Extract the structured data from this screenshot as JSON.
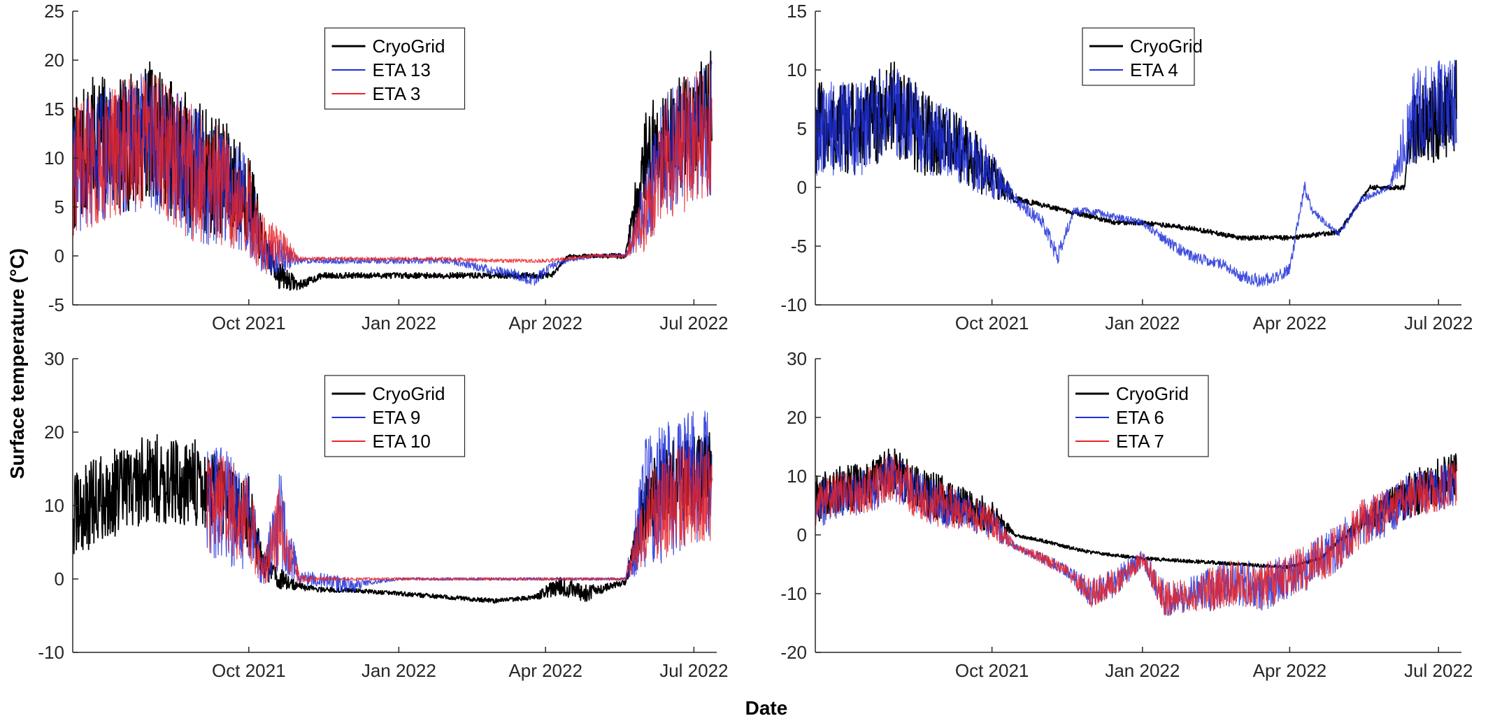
{
  "figure": {
    "ylabel": "Surface temperature (°C)",
    "xlabel": "Date"
  },
  "chart_data": [
    {
      "type": "line",
      "xlim": [
        "2021-06-15",
        "2022-07-15"
      ],
      "ylim": [
        -5,
        25
      ],
      "yticks": [
        -5,
        0,
        5,
        10,
        15,
        20,
        25
      ],
      "xticks": [
        {
          "date": "2021-10-01",
          "label": "Oct 2021"
        },
        {
          "date": "2022-01-01",
          "label": "Jan 2022"
        },
        {
          "date": "2022-04-01",
          "label": "Apr 2022"
        },
        {
          "date": "2022-07-01",
          "label": "Jul 2022"
        }
      ],
      "legend": "top-center",
      "series": [
        {
          "name": "CryoGrid",
          "color": "#000000",
          "x": [
            "2021-06-15",
            "2021-07-01",
            "2021-07-15",
            "2021-08-01",
            "2021-08-15",
            "2021-09-01",
            "2021-09-15",
            "2021-10-01",
            "2021-10-10",
            "2021-10-20",
            "2021-11-01",
            "2021-11-15",
            "2021-12-01",
            "2022-01-01",
            "2022-02-01",
            "2022-03-01",
            "2022-03-25",
            "2022-04-05",
            "2022-04-15",
            "2022-05-01",
            "2022-05-20",
            "2022-06-01",
            "2022-06-15",
            "2022-07-01",
            "2022-07-12"
          ],
          "y": [
            9,
            12,
            11,
            13,
            11,
            9,
            8,
            6,
            1,
            -2,
            -3,
            -2,
            -2,
            -2,
            -2,
            -2,
            -2,
            -2,
            0,
            0,
            0,
            10,
            12,
            14,
            15
          ],
          "noise": [
            7,
            7,
            7,
            7,
            7,
            7,
            6,
            5,
            2,
            1.5,
            0.5,
            0.3,
            0.3,
            0.3,
            0.3,
            0.3,
            0.3,
            0.3,
            0.2,
            0.2,
            0.3,
            5,
            6,
            6,
            6
          ]
        },
        {
          "name": "ETA 13",
          "color": "#1f2fd8",
          "x": [
            "2021-06-15",
            "2021-07-01",
            "2021-07-15",
            "2021-08-01",
            "2021-08-15",
            "2021-09-01",
            "2021-09-15",
            "2021-10-01",
            "2021-10-10",
            "2021-10-20",
            "2021-11-01",
            "2021-11-15",
            "2021-12-01",
            "2022-01-01",
            "2022-02-01",
            "2022-03-01",
            "2022-03-15",
            "2022-03-25",
            "2022-04-05",
            "2022-04-15",
            "2022-05-01",
            "2022-05-20",
            "2022-06-01",
            "2022-06-15",
            "2022-07-01",
            "2022-07-12"
          ],
          "y": [
            9,
            10,
            11,
            12,
            10,
            8,
            7,
            5,
            0,
            0,
            -0.5,
            -0.5,
            -0.5,
            -0.5,
            -0.5,
            -1.5,
            -2,
            -2.5,
            -1,
            -0.5,
            0,
            0,
            5,
            11,
            12,
            13
          ],
          "noise": [
            7,
            7,
            7,
            7,
            7,
            7,
            6,
            5,
            2,
            2,
            0.3,
            0.3,
            0.3,
            0.3,
            0.3,
            0.5,
            0.6,
            0.6,
            0.4,
            0.2,
            0.2,
            0.2,
            4,
            7,
            7,
            7
          ]
        },
        {
          "name": "ETA 3",
          "color": "#e8262a",
          "x": [
            "2021-06-15",
            "2021-07-01",
            "2021-07-15",
            "2021-08-01",
            "2021-08-15",
            "2021-09-01",
            "2021-09-15",
            "2021-10-01",
            "2021-10-10",
            "2021-10-20",
            "2021-11-01",
            "2021-12-01",
            "2022-01-01",
            "2022-02-01",
            "2022-03-01",
            "2022-04-01",
            "2022-05-01",
            "2022-05-20",
            "2022-06-01",
            "2022-06-15",
            "2022-07-01",
            "2022-07-12"
          ],
          "y": [
            9,
            10,
            11,
            12,
            10,
            8,
            7,
            5,
            1,
            0.5,
            -0.3,
            -0.3,
            -0.3,
            -0.3,
            -0.5,
            -0.5,
            0,
            0,
            4,
            10,
            12,
            13
          ],
          "noise": [
            7,
            7,
            7,
            7,
            7,
            7,
            6,
            5,
            3,
            2.5,
            0.2,
            0.2,
            0.2,
            0.2,
            0.2,
            0.2,
            0.2,
            0.2,
            4,
            7,
            7,
            7
          ]
        }
      ]
    },
    {
      "type": "line",
      "xlim": [
        "2021-06-15",
        "2022-07-15"
      ],
      "ylim": [
        -10,
        15
      ],
      "yticks": [
        -10,
        -5,
        0,
        5,
        10,
        15
      ],
      "xticks": [
        {
          "date": "2021-10-01",
          "label": "Oct 2021"
        },
        {
          "date": "2022-01-01",
          "label": "Jan 2022"
        },
        {
          "date": "2022-04-01",
          "label": "Apr 2022"
        },
        {
          "date": "2022-07-01",
          "label": "Jul 2022"
        }
      ],
      "legend": "top-center",
      "series": [
        {
          "name": "CryoGrid",
          "color": "#000000",
          "x": [
            "2021-06-15",
            "2021-07-01",
            "2021-07-15",
            "2021-08-01",
            "2021-08-15",
            "2021-09-01",
            "2021-09-15",
            "2021-10-01",
            "2021-10-15",
            "2021-11-01",
            "2021-11-15",
            "2021-12-01",
            "2021-12-15",
            "2022-01-01",
            "2022-02-01",
            "2022-03-01",
            "2022-04-01",
            "2022-05-01",
            "2022-05-20",
            "2022-06-01",
            "2022-06-10",
            "2022-06-15",
            "2022-07-01",
            "2022-07-12"
          ],
          "y": [
            5,
            5,
            5,
            7,
            5,
            4,
            3,
            1,
            -1,
            -1.5,
            -2,
            -2.5,
            -3,
            -3,
            -3.5,
            -4.3,
            -4.3,
            -3.8,
            0,
            0,
            0,
            5,
            6,
            7
          ],
          "noise": [
            4,
            4,
            4,
            4,
            4,
            3,
            3,
            2,
            0.3,
            0.2,
            0.2,
            0.2,
            0.2,
            0.2,
            0.2,
            0.2,
            0.2,
            0.2,
            0.2,
            0.2,
            0.2,
            3,
            4,
            4
          ]
        },
        {
          "name": "ETA 4",
          "color": "#1f2fd8",
          "x": [
            "2021-06-15",
            "2021-07-01",
            "2021-07-15",
            "2021-08-01",
            "2021-08-15",
            "2021-09-01",
            "2021-09-15",
            "2021-10-01",
            "2021-10-15",
            "2021-11-01",
            "2021-11-10",
            "2021-11-20",
            "2021-12-01",
            "2021-12-15",
            "2022-01-01",
            "2022-01-20",
            "2022-02-01",
            "2022-02-20",
            "2022-03-01",
            "2022-03-15",
            "2022-03-25",
            "2022-04-01",
            "2022-04-10",
            "2022-04-15",
            "2022-05-01",
            "2022-05-15",
            "2022-06-01",
            "2022-06-15",
            "2022-07-01",
            "2022-07-12"
          ],
          "y": [
            5,
            5,
            5,
            7,
            5,
            4,
            3,
            1,
            -1,
            -3,
            -6,
            -2,
            -2,
            -2.5,
            -3,
            -5,
            -6,
            -6.5,
            -7.5,
            -8,
            -7.5,
            -7,
            0,
            -2,
            -4,
            -1,
            0,
            6,
            7,
            7
          ],
          "noise": [
            4,
            4,
            4,
            4,
            4,
            3,
            3,
            2,
            0.6,
            0.6,
            0.8,
            0.3,
            0.3,
            0.3,
            0.3,
            0.5,
            0.5,
            0.5,
            0.5,
            0.6,
            0.5,
            0.5,
            0.6,
            0.3,
            0.3,
            0.3,
            0.2,
            4,
            4,
            4
          ]
        }
      ]
    },
    {
      "type": "line",
      "xlim": [
        "2021-06-15",
        "2022-07-15"
      ],
      "ylim": [
        -10,
        30
      ],
      "yticks": [
        -10,
        0,
        10,
        20,
        30
      ],
      "xticks": [
        {
          "date": "2021-10-01",
          "label": "Oct 2021"
        },
        {
          "date": "2022-01-01",
          "label": "Jan 2022"
        },
        {
          "date": "2022-04-01",
          "label": "Apr 2022"
        },
        {
          "date": "2022-07-01",
          "label": "Jul 2022"
        }
      ],
      "legend": "top-center",
      "series": [
        {
          "name": "CryoGrid",
          "color": "#000000",
          "x": [
            "2021-06-15",
            "2021-07-01",
            "2021-07-15",
            "2021-08-01",
            "2021-08-15",
            "2021-09-01",
            "2021-09-15",
            "2021-10-01",
            "2021-10-10",
            "2021-10-20",
            "2021-11-01",
            "2021-11-15",
            "2021-12-01",
            "2022-01-01",
            "2022-02-01",
            "2022-03-01",
            "2022-03-25",
            "2022-04-10",
            "2022-04-25",
            "2022-05-10",
            "2022-05-20",
            "2022-06-01",
            "2022-06-15",
            "2022-07-01",
            "2022-07-12"
          ],
          "y": [
            8,
            11,
            12,
            14,
            13,
            13,
            11,
            9,
            2,
            0,
            -1,
            -1.5,
            -1.5,
            -2,
            -2.5,
            -3,
            -2.5,
            -1,
            -2,
            -1,
            -0.5,
            10,
            13,
            14,
            14
          ],
          "noise": [
            6,
            6,
            6,
            6,
            6,
            6,
            5,
            5,
            2,
            1.5,
            0.5,
            0.4,
            0.3,
            0.3,
            0.3,
            0.3,
            0.3,
            1.5,
            1.2,
            0.5,
            0.3,
            5,
            6,
            6,
            6
          ]
        },
        {
          "name": "ETA 9",
          "color": "#1f2fd8",
          "x": [
            "2021-09-05",
            "2021-09-15",
            "2021-10-01",
            "2021-10-10",
            "2021-10-20",
            "2021-11-01",
            "2021-11-15",
            "2021-12-01",
            "2021-12-15",
            "2022-01-01",
            "2022-02-01",
            "2022-03-01",
            "2022-04-01",
            "2022-05-01",
            "2022-05-20",
            "2022-06-01",
            "2022-06-15",
            "2022-07-01",
            "2022-07-12"
          ],
          "y": [
            10,
            10,
            8,
            1,
            8,
            0,
            0,
            -1,
            -0.5,
            0,
            0,
            0,
            0,
            0,
            0,
            10,
            12,
            14,
            14
          ],
          "noise": [
            8,
            8,
            7,
            2,
            7,
            1,
            1,
            1.2,
            0.3,
            0.2,
            0.2,
            0.2,
            0.2,
            0.2,
            0.2,
            9,
            10,
            9,
            9
          ]
        },
        {
          "name": "ETA 10",
          "color": "#e8262a",
          "x": [
            "2021-09-05",
            "2021-09-15",
            "2021-10-01",
            "2021-10-10",
            "2021-10-20",
            "2021-11-01",
            "2021-11-15",
            "2021-12-01",
            "2022-01-01",
            "2022-02-01",
            "2022-03-01",
            "2022-04-01",
            "2022-05-01",
            "2022-05-20",
            "2022-06-01",
            "2022-06-15",
            "2022-07-01",
            "2022-07-12"
          ],
          "y": [
            10,
            10,
            8,
            1,
            7,
            0,
            0,
            0,
            0,
            0,
            0,
            0,
            0,
            0,
            8,
            10,
            12,
            12
          ],
          "noise": [
            7,
            7,
            6,
            2,
            6,
            0.6,
            0.3,
            0.2,
            0.2,
            0.2,
            0.2,
            0.2,
            0.2,
            0.2,
            6,
            7,
            7,
            7
          ]
        }
      ]
    },
    {
      "type": "line",
      "xlim": [
        "2021-06-15",
        "2022-07-15"
      ],
      "ylim": [
        -20,
        30
      ],
      "yticks": [
        -20,
        -10,
        0,
        10,
        20,
        30
      ],
      "xticks": [
        {
          "date": "2021-10-01",
          "label": "Oct 2021"
        },
        {
          "date": "2022-01-01",
          "label": "Jan 2022"
        },
        {
          "date": "2022-04-01",
          "label": "Apr 2022"
        },
        {
          "date": "2022-07-01",
          "label": "Jul 2022"
        }
      ],
      "legend": "top-center",
      "series": [
        {
          "name": "CryoGrid",
          "color": "#000000",
          "x": [
            "2021-06-15",
            "2021-07-01",
            "2021-07-15",
            "2021-08-01",
            "2021-08-15",
            "2021-09-01",
            "2021-09-15",
            "2021-10-01",
            "2021-10-15",
            "2021-11-01",
            "2021-11-15",
            "2021-12-01",
            "2022-01-01",
            "2022-02-01",
            "2022-03-01",
            "2022-04-01",
            "2022-04-20",
            "2022-05-01",
            "2022-05-15",
            "2022-06-01",
            "2022-06-15",
            "2022-07-01",
            "2022-07-12"
          ],
          "y": [
            6,
            8,
            8,
            11,
            8,
            6,
            5,
            3,
            0,
            -1,
            -2,
            -3,
            -4,
            -4.5,
            -5,
            -5.5,
            -4,
            -1,
            2,
            5,
            7,
            9,
            10
          ],
          "noise": [
            4,
            4,
            4,
            4,
            4,
            4,
            3,
            3,
            0.3,
            0.3,
            0.3,
            0.3,
            0.3,
            0.3,
            0.3,
            0.3,
            0.3,
            0.5,
            1.5,
            3,
            4,
            4,
            4
          ]
        },
        {
          "name": "ETA 6",
          "color": "#1f2fd8",
          "x": [
            "2021-06-15",
            "2021-07-01",
            "2021-07-15",
            "2021-08-01",
            "2021-08-15",
            "2021-09-01",
            "2021-09-15",
            "2021-10-01",
            "2021-10-15",
            "2021-11-01",
            "2021-11-15",
            "2021-12-01",
            "2021-12-15",
            "2022-01-01",
            "2022-01-15",
            "2022-02-01",
            "2022-02-15",
            "2022-03-01",
            "2022-03-15",
            "2022-04-01",
            "2022-04-15",
            "2022-05-01",
            "2022-05-15",
            "2022-06-01",
            "2022-06-15",
            "2022-07-01",
            "2022-07-12"
          ],
          "y": [
            5,
            7,
            7,
            10,
            7,
            5,
            4,
            2,
            -2,
            -4,
            -6,
            -10,
            -8,
            -4,
            -11,
            -10,
            -9,
            -8,
            -9,
            -7,
            -5,
            -2,
            2,
            4,
            7,
            8,
            9
          ],
          "noise": [
            4,
            4,
            4,
            4,
            4,
            4,
            3,
            3,
            0.5,
            1,
            1,
            2.5,
            2.5,
            1.5,
            3,
            3,
            4,
            4,
            4,
            4,
            4,
            4,
            4,
            4,
            4,
            4,
            4
          ]
        },
        {
          "name": "ETA 7",
          "color": "#e8262a",
          "x": [
            "2021-06-15",
            "2021-07-01",
            "2021-07-15",
            "2021-08-01",
            "2021-08-15",
            "2021-09-01",
            "2021-09-15",
            "2021-10-01",
            "2021-10-15",
            "2021-11-01",
            "2021-11-15",
            "2021-12-01",
            "2021-12-15",
            "2022-01-01",
            "2022-01-15",
            "2022-02-01",
            "2022-02-15",
            "2022-03-01",
            "2022-03-15",
            "2022-04-01",
            "2022-04-15",
            "2022-05-01",
            "2022-05-15",
            "2022-06-01",
            "2022-06-15",
            "2022-07-01",
            "2022-07-12"
          ],
          "y": [
            5,
            7,
            7,
            10,
            7,
            5,
            4,
            2,
            -2,
            -4,
            -6,
            -10,
            -8,
            -4,
            -11,
            -10,
            -9,
            -8,
            -9,
            -7,
            -5,
            -2,
            2,
            4,
            7,
            8,
            9
          ],
          "noise": [
            4,
            4,
            4,
            4,
            4,
            4,
            3,
            3,
            0.5,
            1,
            1,
            2.5,
            2.5,
            1.5,
            3,
            3,
            4,
            4,
            4,
            4,
            4,
            4,
            4,
            4,
            4,
            4,
            4
          ]
        }
      ]
    }
  ]
}
